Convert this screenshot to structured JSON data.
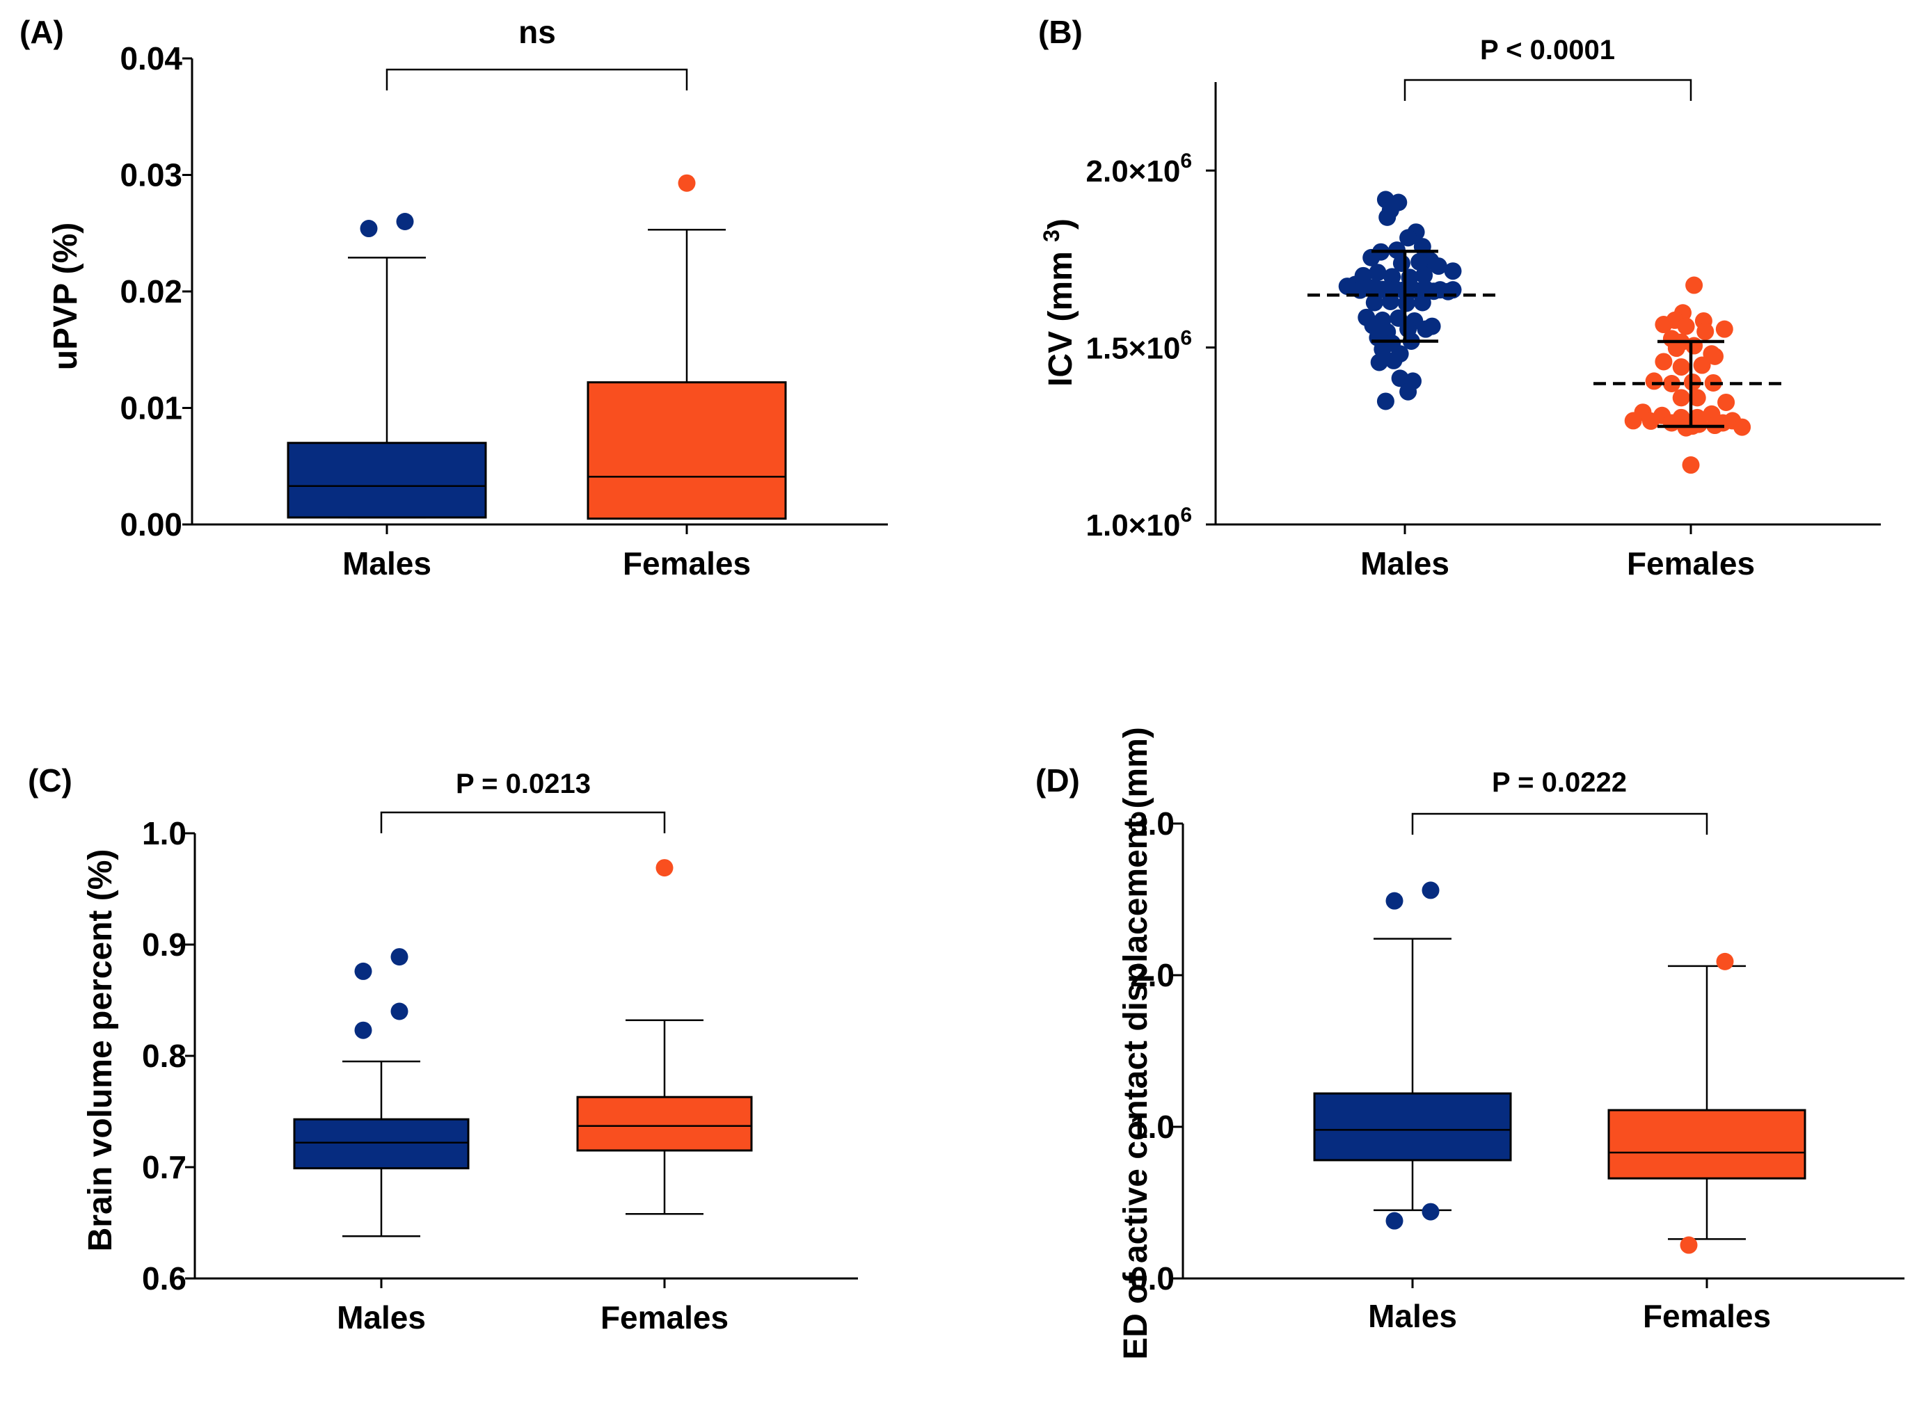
{
  "colors": {
    "males": "#062C80",
    "females": "#F94F1F"
  },
  "chart_data": [
    {
      "id": "A",
      "type": "boxplot",
      "panel_label": "(A)",
      "ylabel": "uPVP (%)",
      "ylim": [
        0,
        0.04
      ],
      "yticks": [
        "0.00",
        "0.01",
        "0.02",
        "0.03",
        "0.04"
      ],
      "ytick_values": [
        0,
        0.01,
        0.02,
        0.03,
        0.04
      ],
      "categories": [
        "Males",
        "Females"
      ],
      "significance": "ns",
      "boxes": [
        {
          "name": "Males",
          "whisker_low": 0.0006,
          "q1": 0.0006,
          "median": 0.0033,
          "q3": 0.007,
          "whisker_high": 0.0229,
          "outliers": [
            0.0254,
            0.026
          ]
        },
        {
          "name": "Females",
          "whisker_low": 0.0005,
          "q1": 0.0005,
          "median": 0.0041,
          "q3": 0.0122,
          "whisker_high": 0.0253,
          "outliers": [
            0.0293
          ]
        }
      ]
    },
    {
      "id": "B",
      "type": "scatter",
      "panel_label": "(B)",
      "ylabel": "ICV (mm³)",
      "ylim": [
        1000000,
        2250000
      ],
      "ytick_values": [
        1000000,
        1500000,
        2000000
      ],
      "yticks": [
        {
          "base": "1.0×10",
          "exp": "6"
        },
        {
          "base": "1.5×10",
          "exp": "6"
        },
        {
          "base": "2.0×10",
          "exp": "6"
        }
      ],
      "categories": [
        "Males",
        "Females"
      ],
      "significance": "P < 0.0001",
      "groups": [
        {
          "name": "Males",
          "mean": 1648000,
          "sd_low": 1518000,
          "sd_high": 1772000,
          "points": [
            [
              -0.12,
              1918000
            ],
            [
              -0.04,
              1910000
            ],
            [
              -0.09,
              1888000
            ],
            [
              -0.11,
              1868000
            ],
            [
              0.07,
              1826000
            ],
            [
              0.02,
              1810000
            ],
            [
              -0.21,
              1754000
            ],
            [
              -0.15,
              1770000
            ],
            [
              -0.05,
              1775000
            ],
            [
              0.11,
              1785000
            ],
            [
              0.16,
              1745000
            ],
            [
              -0.26,
              1703000
            ],
            [
              -0.02,
              1738000
            ],
            [
              0.09,
              1742000
            ],
            [
              0.21,
              1730000
            ],
            [
              0.3,
              1716000
            ],
            [
              -0.17,
              1712000
            ],
            [
              -0.08,
              1700000
            ],
            [
              0.03,
              1698000
            ],
            [
              0.12,
              1704000
            ],
            [
              -0.36,
              1673000
            ],
            [
              -0.31,
              1678000
            ],
            [
              -0.28,
              1662000
            ],
            [
              -0.23,
              1668000
            ],
            [
              -0.19,
              1670000
            ],
            [
              -0.14,
              1664000
            ],
            [
              -0.1,
              1659000
            ],
            [
              -0.06,
              1665000
            ],
            [
              -0.01,
              1662000
            ],
            [
              0.04,
              1668000
            ],
            [
              0.08,
              1660000
            ],
            [
              0.13,
              1665000
            ],
            [
              0.18,
              1659000
            ],
            [
              0.22,
              1663000
            ],
            [
              0.27,
              1658000
            ],
            [
              0.3,
              1663000
            ],
            [
              -0.19,
              1627000
            ],
            [
              -0.09,
              1630000
            ],
            [
              0.01,
              1625000
            ],
            [
              0.11,
              1627000
            ],
            [
              -0.24,
              1585000
            ],
            [
              -0.14,
              1577000
            ],
            [
              -0.04,
              1583000
            ],
            [
              0.06,
              1575000
            ],
            [
              -0.2,
              1562000
            ],
            [
              -0.11,
              1544000
            ],
            [
              0.02,
              1552000
            ],
            [
              0.13,
              1552000
            ],
            [
              0.17,
              1560000
            ],
            [
              -0.17,
              1528000
            ],
            [
              -0.08,
              1512000
            ],
            [
              0.04,
              1518000
            ],
            [
              -0.14,
              1495000
            ],
            [
              -0.03,
              1482000
            ],
            [
              -0.16,
              1458000
            ],
            [
              -0.07,
              1463000
            ],
            [
              -0.03,
              1413000
            ],
            [
              0.05,
              1405000
            ],
            [
              -0.12,
              1348000
            ],
            [
              0.02,
              1375000
            ]
          ]
        },
        {
          "name": "Females",
          "mean": 1398000,
          "sd_low": 1277000,
          "sd_high": 1517000,
          "points": [
            [
              0.02,
              1676000
            ],
            [
              -0.05,
              1598000
            ],
            [
              -0.1,
              1577000
            ],
            [
              0.08,
              1575000
            ],
            [
              -0.17,
              1565000
            ],
            [
              -0.03,
              1560000
            ],
            [
              0.09,
              1545000
            ],
            [
              0.21,
              1552000
            ],
            [
              -0.12,
              1525000
            ],
            [
              -0.06,
              1515000
            ],
            [
              0.02,
              1505000
            ],
            [
              -0.09,
              1498000
            ],
            [
              0.13,
              1482000
            ],
            [
              -0.17,
              1460000
            ],
            [
              -0.06,
              1445000
            ],
            [
              0.07,
              1450000
            ],
            [
              0.15,
              1475000
            ],
            [
              -0.23,
              1405000
            ],
            [
              -0.12,
              1398000
            ],
            [
              0.01,
              1402000
            ],
            [
              0.14,
              1400000
            ],
            [
              -0.06,
              1358000
            ],
            [
              0.04,
              1358000
            ],
            [
              0.22,
              1345000
            ],
            [
              -0.3,
              1317000
            ],
            [
              -0.18,
              1308000
            ],
            [
              -0.06,
              1302000
            ],
            [
              0.04,
              1302000
            ],
            [
              0.13,
              1312000
            ],
            [
              -0.25,
              1292000
            ],
            [
              -0.12,
              1287000
            ],
            [
              0.05,
              1283000
            ],
            [
              0.15,
              1280000
            ],
            [
              -0.36,
              1293000
            ],
            [
              -0.03,
              1273000
            ],
            [
              0.01,
              1278000
            ],
            [
              0.2,
              1287000
            ],
            [
              0.26,
              1293000
            ],
            [
              0.32,
              1275000
            ],
            [
              0.0,
              1168000
            ]
          ]
        }
      ]
    },
    {
      "id": "C",
      "type": "boxplot",
      "panel_label": "(C)",
      "ylabel": "Brain volume percent (%)",
      "ylim": [
        0.6,
        1.0
      ],
      "yticks": [
        "0.6",
        "0.7",
        "0.8",
        "0.9",
        "1.0"
      ],
      "ytick_values": [
        0.6,
        0.7,
        0.8,
        0.9,
        1.0
      ],
      "categories": [
        "Males",
        "Females"
      ],
      "significance": "P = 0.0213",
      "boxes": [
        {
          "name": "Males",
          "whisker_low": 0.638,
          "q1": 0.699,
          "median": 0.722,
          "q3": 0.743,
          "whisker_high": 0.795,
          "outliers": [
            0.823,
            0.84,
            0.876,
            0.889
          ]
        },
        {
          "name": "Females",
          "whisker_low": 0.658,
          "q1": 0.715,
          "median": 0.737,
          "q3": 0.763,
          "whisker_high": 0.832,
          "outliers": [
            0.969
          ]
        }
      ]
    },
    {
      "id": "D",
      "type": "boxplot",
      "panel_label": "(D)",
      "ylabel": "ED of active contact displacement (mm)",
      "ylim": [
        0,
        3.0
      ],
      "yticks": [
        "0.0",
        "1.0",
        "2.0",
        "3.0"
      ],
      "ytick_values": [
        0,
        1.0,
        2.0,
        3.0
      ],
      "categories": [
        "Males",
        "Females"
      ],
      "significance": "P = 0.0222",
      "boxes": [
        {
          "name": "Males",
          "whisker_low": 0.45,
          "q1": 0.78,
          "median": 0.98,
          "q3": 1.22,
          "whisker_high": 2.24,
          "outliers": [
            0.38,
            0.44,
            2.49,
            2.56
          ]
        },
        {
          "name": "Females",
          "whisker_low": 0.26,
          "q1": 0.66,
          "median": 0.83,
          "q3": 1.11,
          "whisker_high": 2.06,
          "outliers": [
            0.22,
            2.09
          ]
        }
      ]
    }
  ]
}
